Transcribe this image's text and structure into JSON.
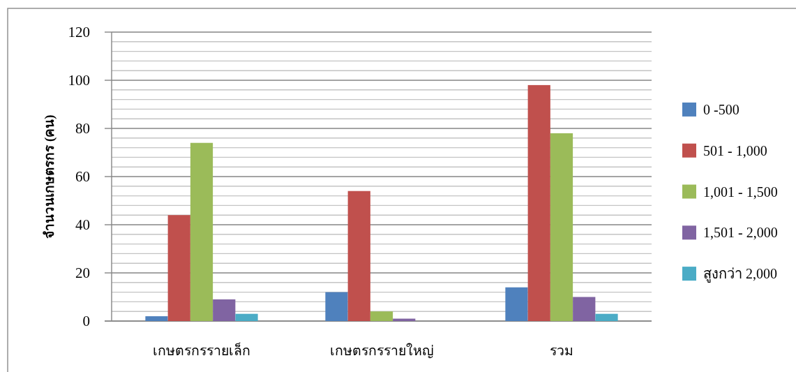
{
  "chart_data": {
    "type": "bar",
    "ylabel": "จำนวนเกษตรกร (คน)",
    "categories": [
      "เกษตรกรรายเล็ก",
      "เกษตรกรรายใหญ่",
      "รวม"
    ],
    "series": [
      {
        "name": "0 -500",
        "color": "#4f81bd",
        "values": [
          2,
          12,
          14
        ]
      },
      {
        "name": "501 - 1,000",
        "color": "#c0504d",
        "values": [
          44,
          54,
          98
        ]
      },
      {
        "name": "1,001 - 1,500",
        "color": "#9bbb59",
        "values": [
          74,
          4,
          78
        ]
      },
      {
        "name": "1,501 - 2,000",
        "color": "#8064a2",
        "values": [
          9,
          1,
          10
        ]
      },
      {
        "name": "สูงกว่า 2,000",
        "color": "#4bacc6",
        "values": [
          3,
          0,
          3
        ]
      }
    ],
    "ylim": [
      0,
      120
    ],
    "yticks": [
      0,
      {
        "value": 4,
        "label": null
      },
      {
        "value": 8,
        "label": null
      },
      {
        "value": 12,
        "label": null
      },
      {
        "value": 16,
        "label": null
      },
      20,
      {
        "value": 24,
        "label": null
      },
      {
        "value": 28,
        "label": null
      },
      {
        "value": 32,
        "label": null
      },
      {
        "value": 36,
        "label": null
      },
      40,
      {
        "value": 44,
        "label": null
      },
      {
        "value": 48,
        "label": null
      },
      {
        "value": 52,
        "label": null
      },
      {
        "value": 56,
        "label": null
      },
      60,
      {
        "value": 64,
        "label": null
      },
      {
        "value": 68,
        "label": null
      },
      {
        "value": 72,
        "label": null
      },
      {
        "value": 76,
        "label": null
      },
      80,
      {
        "value": 84,
        "label": null
      },
      {
        "value": 88,
        "label": null
      },
      {
        "value": 92,
        "label": null
      },
      {
        "value": 96,
        "label": null
      },
      100,
      {
        "value": 104,
        "label": null
      },
      {
        "value": 108,
        "label": null
      },
      {
        "value": 112,
        "label": null
      },
      {
        "value": 116,
        "label": null
      },
      120
    ],
    "grid": "y",
    "legend": "right"
  }
}
